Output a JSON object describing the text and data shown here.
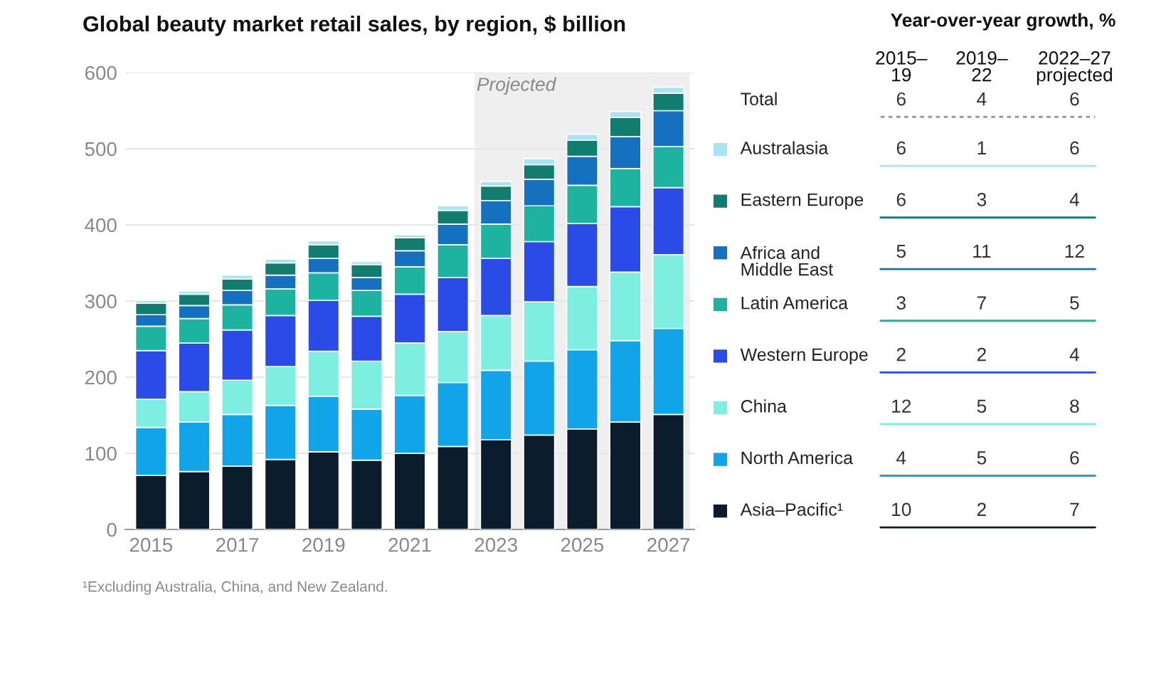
{
  "chart_data": [
    {
      "type": "bar",
      "stacked": true,
      "title": "Global beauty market retail sales, by region, $ billion",
      "categories": [
        "2015",
        null,
        "2017",
        null,
        "2019",
        null,
        "2021",
        null,
        "2023",
        null,
        "2025",
        null,
        "2027"
      ],
      "series": [
        {
          "color": "#0b1c2c",
          "values": [
            71,
            76,
            83,
            92,
            102,
            91,
            100,
            109,
            118,
            124,
            132,
            141,
            151
          ]
        },
        {
          "color": "#12a4e8",
          "values": [
            63,
            65,
            68,
            71,
            73,
            67,
            76,
            84,
            91,
            97,
            104,
            107,
            113
          ]
        },
        {
          "color": "#7eeee0",
          "values": [
            37,
            40,
            45,
            51,
            59,
            63,
            69,
            67,
            72,
            78,
            83,
            90,
            97
          ]
        },
        {
          "color": "#2a4be8",
          "values": [
            64,
            64,
            66,
            67,
            67,
            59,
            64,
            71,
            75,
            79,
            83,
            86,
            88
          ]
        },
        {
          "color": "#1db3a0",
          "values": [
            32,
            32,
            33,
            35,
            36,
            34,
            36,
            43,
            45,
            47,
            50,
            50,
            54
          ]
        },
        {
          "color": "#1670c0",
          "values": [
            15,
            17,
            19,
            18,
            19,
            17,
            21,
            27,
            31,
            35,
            38,
            42,
            47
          ]
        },
        {
          "color": "#127d6e",
          "values": [
            15,
            15,
            15,
            16,
            18,
            17,
            17,
            18,
            19,
            19,
            21,
            25,
            23
          ]
        },
        {
          "color": "#a8e4f4",
          "values": [
            4,
            4,
            5,
            5,
            5,
            4,
            4,
            6,
            6,
            8,
            8,
            8,
            8
          ]
        }
      ],
      "ylim": [
        0,
        600
      ],
      "yticks": [
        0,
        100,
        200,
        300,
        400,
        500,
        600
      ],
      "grid": "y",
      "legend": false,
      "bands": [
        {
          "axis": "x",
          "from": "2023",
          "to": "2027",
          "label": "Projected",
          "color": "#efefef"
        }
      ],
      "annotations": [
        "¹Excluding Australia, China, and New Zealand."
      ]
    },
    {
      "type": "other",
      "title": "Year-over-year growth, %",
      "categories": [
        "Total",
        "Australasia",
        "Eastern Europe",
        "Africa and\nMiddle East",
        "Latin America",
        "Western Europe",
        "China",
        "North America",
        "Asia–Pacific¹"
      ],
      "colors": [
        null,
        "#a8e4f4",
        "#127d6e",
        "#1670c0",
        "#1db3a0",
        "#2a4be8",
        "#7eeee0",
        "#12a4e8",
        "#0b1c2c"
      ],
      "series": [
        {
          "name": "2015–\n19",
          "values": [
            6,
            6,
            6,
            5,
            3,
            2,
            12,
            4,
            10
          ]
        },
        {
          "name": "2019–\n22",
          "values": [
            4,
            1,
            3,
            11,
            7,
            2,
            5,
            5,
            2
          ]
        },
        {
          "name": "2022–27\nprojected",
          "values": [
            6,
            6,
            4,
            12,
            5,
            4,
            8,
            6,
            7
          ]
        }
      ],
      "data_labels": true
    }
  ]
}
